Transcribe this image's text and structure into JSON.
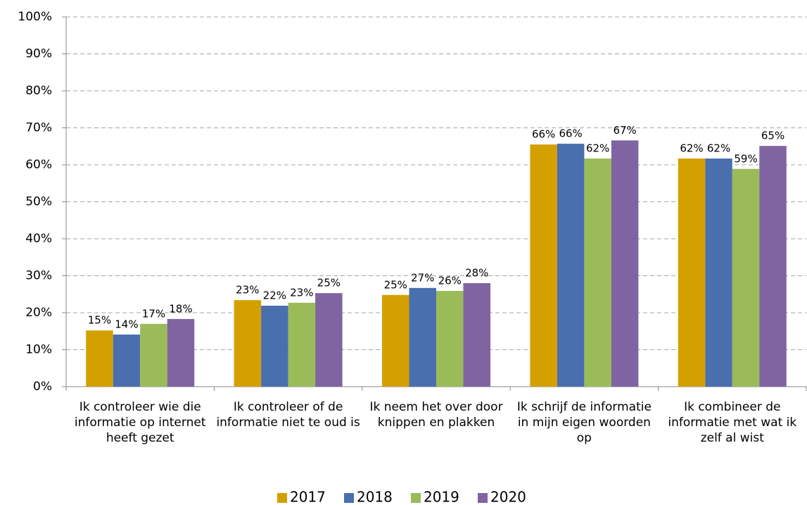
{
  "chart_data": {
    "type": "bar",
    "categories": [
      "Ik controleer wie die informatie op internet heeft gezet",
      "Ik controleer of de informatie niet te oud is",
      "Ik neem het over door knippen en plakken",
      "Ik schrijf de informatie in mijn eigen woorden op",
      "Ik combineer de informatie met wat ik zelf al wist"
    ],
    "series": [
      {
        "name": "2017",
        "color": "#d4a000",
        "values": [
          15.2,
          23.4,
          24.8,
          65.5,
          61.7
        ],
        "value_labels": [
          "15%",
          "23%",
          "25%",
          "66%",
          "62%"
        ]
      },
      {
        "name": "2018",
        "color": "#4a6fae",
        "values": [
          14.1,
          21.9,
          26.7,
          65.7,
          61.7
        ],
        "value_labels": [
          "14%",
          "22%",
          "27%",
          "66%",
          "62%"
        ]
      },
      {
        "name": "2019",
        "color": "#9bbb59",
        "values": [
          17.0,
          22.7,
          25.9,
          61.7,
          58.9
        ],
        "value_labels": [
          "17%",
          "23%",
          "26%",
          "62%",
          "59%"
        ]
      },
      {
        "name": "2020",
        "color": "#8064a2",
        "values": [
          18.3,
          25.3,
          28.0,
          66.6,
          65.1
        ],
        "value_labels": [
          "18%",
          "25%",
          "28%",
          "67%",
          "65%"
        ]
      }
    ],
    "ylim": [
      0,
      100
    ],
    "yticks": [
      {
        "value": 0,
        "label": "0%"
      },
      {
        "value": 10,
        "label": "10%"
      },
      {
        "value": 20,
        "label": "20%"
      },
      {
        "value": 30,
        "label": "30%"
      },
      {
        "value": 40,
        "label": "40%"
      },
      {
        "value": 50,
        "label": "50%"
      },
      {
        "value": 60,
        "label": "60%"
      },
      {
        "value": 70,
        "label": "70%"
      },
      {
        "value": 80,
        "label": "80%"
      },
      {
        "value": 90,
        "label": "90%"
      },
      {
        "value": 100,
        "label": "100%"
      }
    ],
    "grid": true,
    "legend": "bottom"
  }
}
